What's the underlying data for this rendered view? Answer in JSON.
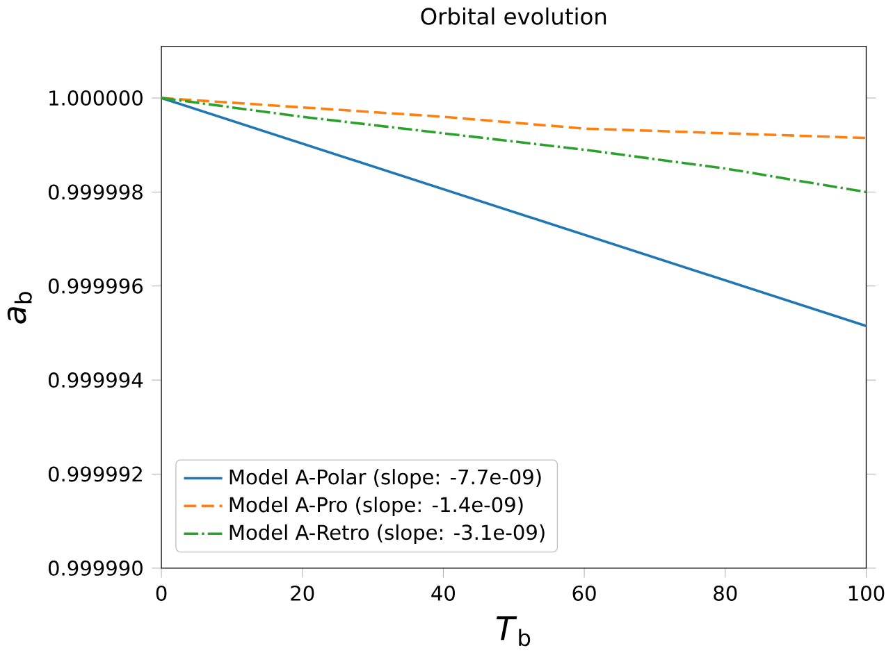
{
  "chart_data": {
    "type": "line",
    "title": "Orbital evolution",
    "xlabel": "*T*$_{b}$",
    "ylabel": "*a*$_{b}$",
    "xlim": [
      0,
      100
    ],
    "xticks": [
      0,
      20,
      40,
      60,
      80,
      100
    ],
    "ylim": [
      0.99999,
      1.0000011
    ],
    "yticks": [
      {
        "value": 0.99999,
        "label": "0.999990"
      },
      {
        "value": 0.999992,
        "label": "0.999992"
      },
      {
        "value": 0.999994,
        "label": "0.999994"
      },
      {
        "value": 0.999996,
        "label": "0.999996"
      },
      {
        "value": 0.999998,
        "label": "0.999998"
      },
      {
        "value": 1.0,
        "label": "1.000000"
      }
    ],
    "legend": "bottom left",
    "grid": false,
    "series": [
      {
        "name": "Model A-Polar (slope: -7.7e-09)",
        "color": "#1f77b4",
        "line_style": "solid",
        "x": [
          0,
          100
        ],
        "values": [
          1.0,
          0.99999515
        ]
      },
      {
        "name": "Model A-Pro (slope: -1.4e-09)",
        "color": "#ff7f0e",
        "line_style": "dashed",
        "x": [
          0,
          20,
          40,
          60,
          80,
          100
        ],
        "values": [
          1.0,
          0.9999998,
          0.9999996,
          0.99999935,
          0.99999925,
          0.99999915
        ]
      },
      {
        "name": "Model A-Retro (slope: -3.1e-09)",
        "color": "#2ca02c",
        "line_style": "dashdot",
        "x": [
          0,
          20,
          40,
          60,
          80,
          100
        ],
        "values": [
          1.0,
          0.9999996,
          0.99999925,
          0.9999989,
          0.9999985,
          0.999998
        ]
      }
    ]
  }
}
